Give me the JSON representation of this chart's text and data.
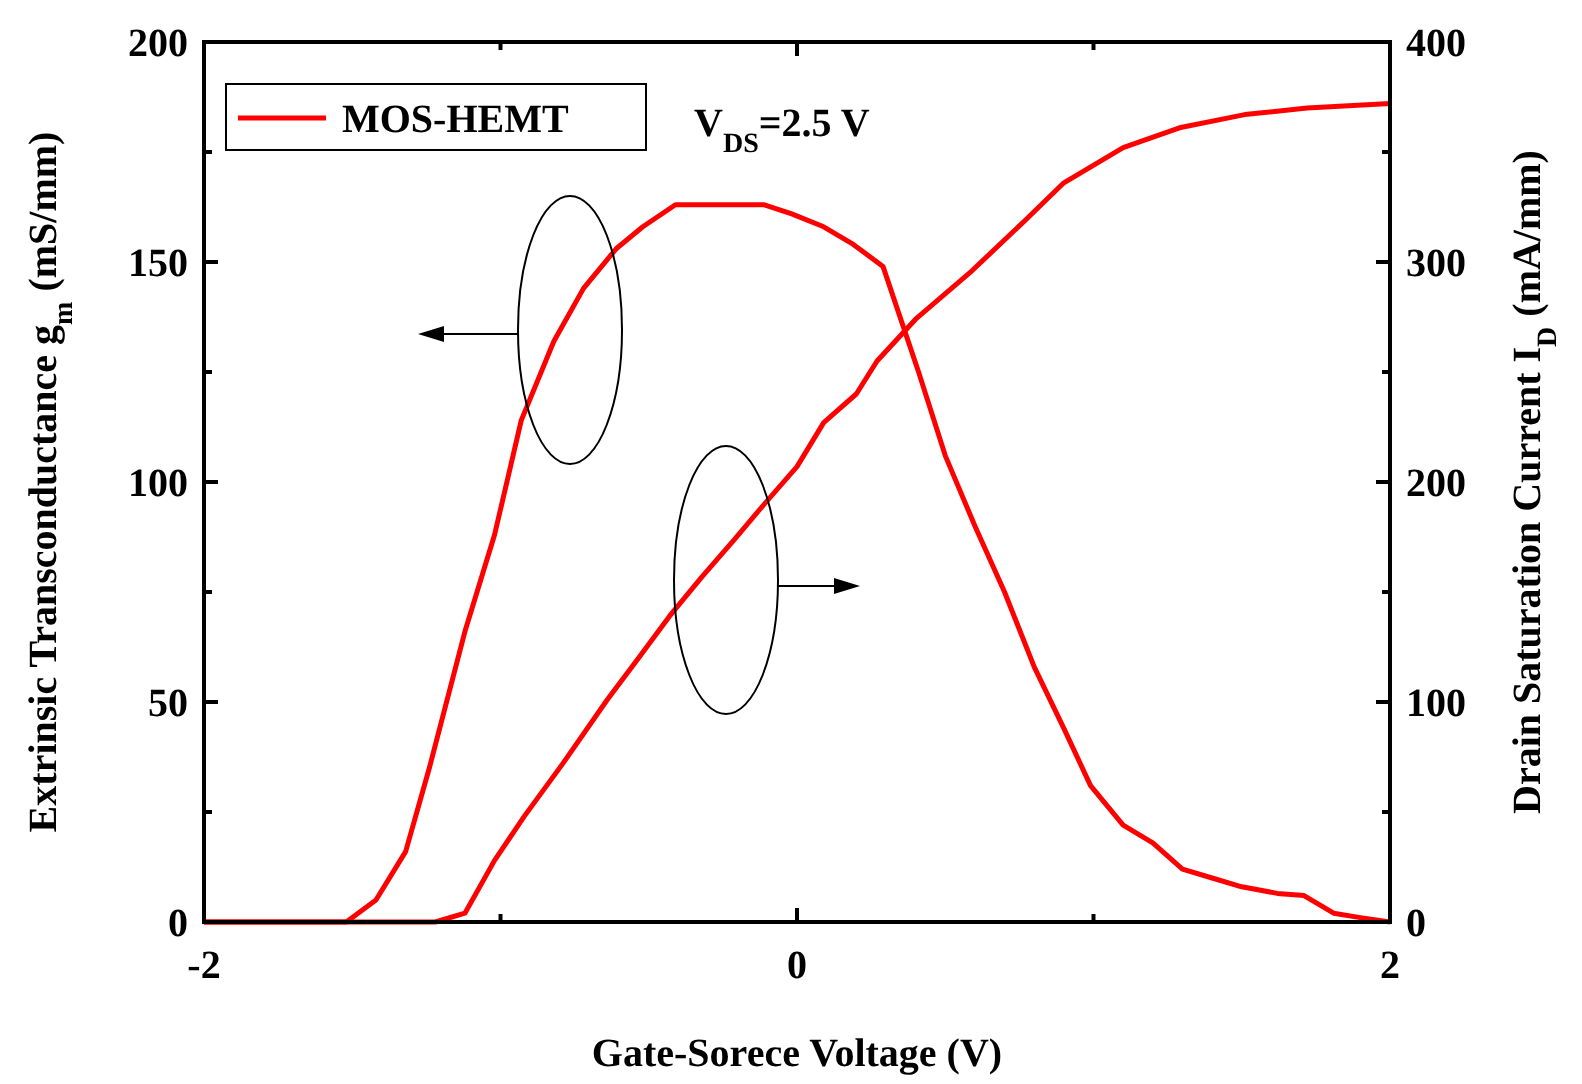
{
  "chart_data": {
    "type": "line",
    "xlabel": "Gate-Sorece Voltage (V)",
    "ylabel": "Extrinsic Transconductance g$_{m}$ (mS/mm)",
    "y2label": "Drain Saturation Current I$_{D}$ (mA/mm)",
    "annotations": [
      "V$_{DS}$=2.5 V"
    ],
    "xlim": [
      -2,
      2
    ],
    "xticks": [
      -2,
      {
        "value": -1,
        "label": null
      },
      0,
      {
        "value": 1,
        "label": null
      },
      2
    ],
    "ylim": [
      0,
      200
    ],
    "yticks": [
      0,
      {
        "value": 25,
        "label": null
      },
      50,
      {
        "value": 75,
        "label": null
      },
      100,
      {
        "value": 125,
        "label": null
      },
      150,
      {
        "value": 175,
        "label": null
      },
      200
    ],
    "y2lim": [
      0,
      400
    ],
    "y2ticks": [
      0,
      {
        "value": 50,
        "label": null
      },
      100,
      {
        "value": 150,
        "label": null
      },
      200,
      {
        "value": 250,
        "label": null
      },
      300,
      {
        "value": 350,
        "label": null
      },
      400
    ],
    "legend": "top left",
    "marker": "none",
    "line_style": "solid",
    "grid": false,
    "series": [
      {
        "name": "MOS-HEMT",
        "color": "#ff0000",
        "x": [
          -2,
          -1.52,
          -1.42,
          -1.32,
          -1.24,
          -1.12,
          -1.02,
          -0.93,
          -0.82,
          -0.72,
          -0.61,
          -0.52,
          -0.41,
          -0.21,
          -0.11,
          -0.02,
          0.09,
          0.19,
          0.29,
          0.41,
          0.5,
          0.6,
          0.7,
          0.8,
          0.9,
          0.99,
          1.1,
          1.2,
          1.3,
          1.4,
          1.5,
          1.62,
          1.71,
          1.81,
          1.9,
          2.0
        ],
        "values": [
          0,
          0,
          5,
          16,
          35,
          66,
          88,
          114,
          132,
          144,
          153,
          158,
          163,
          163,
          163,
          161,
          158,
          154,
          149,
          125,
          106,
          90,
          75,
          58,
          44,
          31,
          22,
          18,
          12,
          10,
          8,
          6.5,
          6,
          2,
          1,
          0
        ]
      },
      {
        "color": "#ff0000",
        "axis": "y2",
        "x": [
          -2,
          -1.22,
          -1.12,
          -1.02,
          -0.92,
          -0.79,
          -0.64,
          -0.54,
          -0.43,
          -0.32,
          -0.21,
          -0.11,
          0,
          0.09,
          0.2,
          0.27,
          0.4,
          0.59,
          0.77,
          0.9,
          1.1,
          1.29,
          1.51,
          1.72,
          2.0
        ],
        "values": [
          0,
          0,
          4,
          28,
          48,
          72,
          101,
          119,
          139,
          157,
          174,
          190,
          207,
          227,
          240,
          255,
          274,
          296,
          319,
          336,
          352,
          361,
          367,
          370,
          372
        ]
      }
    ]
  }
}
